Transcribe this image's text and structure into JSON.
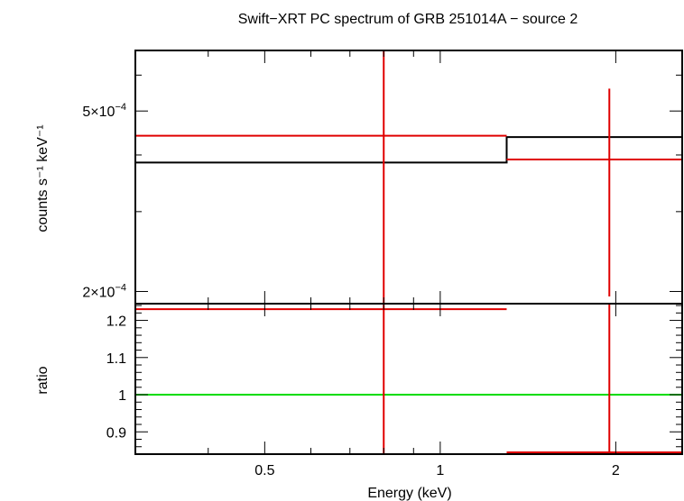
{
  "chart_data": {
    "title": "Swift−XRT PC spectrum of GRB 251014A − source 2",
    "xlabel": "Energy (keV)",
    "x_scale": "log",
    "xlim": [
      0.3,
      2.6
    ],
    "x_ticks": [
      {
        "v": 0.5,
        "label": "0.5"
      },
      {
        "v": 1,
        "label": "1"
      },
      {
        "v": 2,
        "label": "2"
      }
    ],
    "x_minor": [
      0.3,
      0.4,
      0.6,
      0.7,
      0.8,
      0.9
    ],
    "panels": [
      {
        "id": "spectrum",
        "type": "step+errorbar",
        "y_scale": "log",
        "ylabel": "counts s⁻¹ keV⁻¹",
        "ylim": [
          0.000188,
          0.00068
        ],
        "y_ticks": [
          {
            "v": 0.0005,
            "label_mantissa": "5×10",
            "label_exp": "−4"
          },
          {
            "v": 0.0002,
            "label_mantissa": "2×10",
            "label_exp": "−4"
          }
        ],
        "y_minor": [
          0.0003,
          0.0004,
          0.0006
        ],
        "model": {
          "color": "#000000",
          "steps": [
            {
              "x0": 0.3,
              "x1": 1.3,
              "y": 0.000385
            },
            {
              "x0": 1.3,
              "x1": 2.6,
              "y": 0.000438
            }
          ]
        },
        "data": {
          "color": "#e00000",
          "points": [
            {
              "x": 0.8,
              "xlo": 0.3,
              "xhi": 1.3,
              "y": 0.000441,
              "ylo": 0.000188,
              "yhi": 0.00068
            },
            {
              "x": 1.95,
              "xlo": 1.3,
              "xhi": 2.6,
              "y": 0.000391,
              "ylo": 0.000195,
              "yhi": 0.00056
            }
          ]
        }
      },
      {
        "id": "ratio",
        "type": "errorbar",
        "y_scale": "linear",
        "ylabel": "ratio",
        "ylim": [
          0.84,
          1.245
        ],
        "y_ticks": [
          {
            "v": 0.9,
            "label": "0.9"
          },
          {
            "v": 1,
            "label": "1"
          },
          {
            "v": 1.1,
            "label": "1.1"
          },
          {
            "v": 1.2,
            "label": "1.2"
          }
        ],
        "reference_line": {
          "y": 1,
          "color": "#00dd00"
        },
        "data": {
          "color": "#e00000",
          "points": [
            {
              "x": 0.8,
              "xlo": 0.3,
              "xhi": 1.3,
              "y": 1.23,
              "ylo": 0.84,
              "yhi": 1.245
            },
            {
              "x": 1.95,
              "xlo": 1.3,
              "xhi": 2.6,
              "y": 0.845,
              "ylo": 0.84,
              "yhi": 1.245
            }
          ]
        }
      }
    ]
  }
}
